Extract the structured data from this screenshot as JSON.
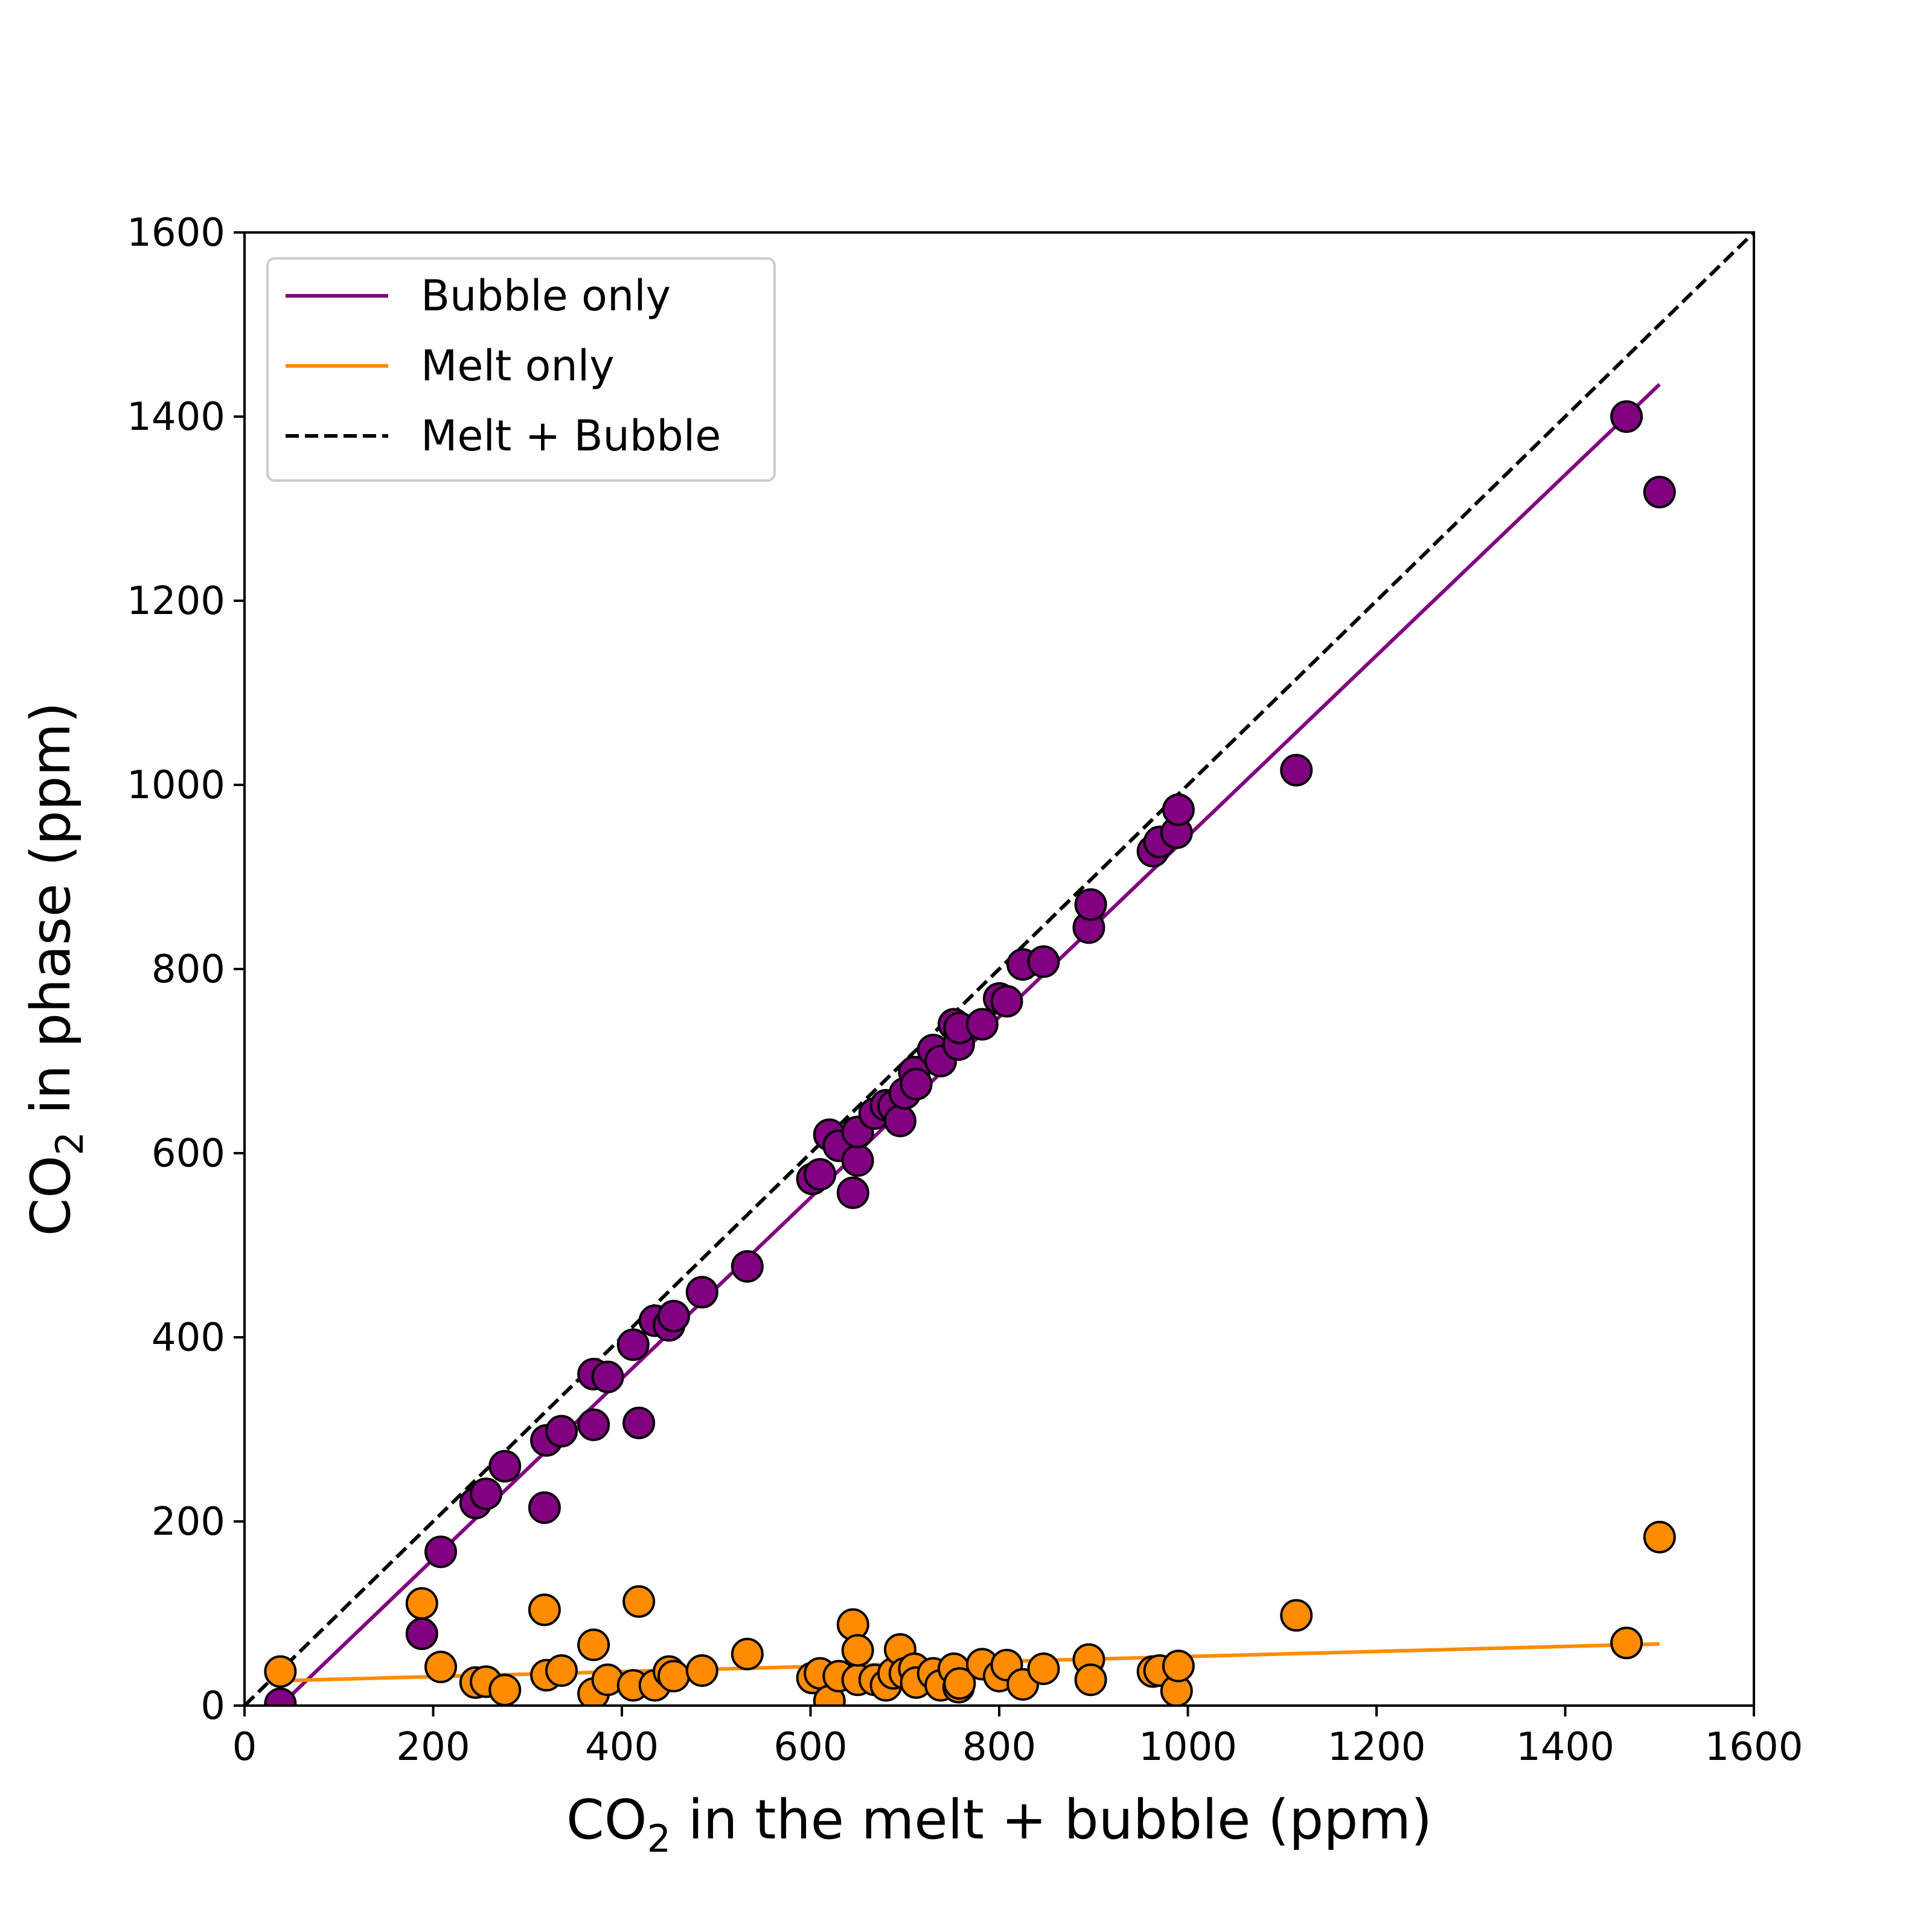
{
  "chart_data": {
    "type": "scatter",
    "xlabel_parts": {
      "pre": "CO",
      "sub": "2",
      "post": " in the melt + bubble (ppm)"
    },
    "ylabel_parts": {
      "pre": "CO",
      "sub": "2",
      "post": " in phase (ppm)"
    },
    "xlim": [
      0,
      1600
    ],
    "ylim": [
      0,
      1600
    ],
    "xticks": [
      0,
      200,
      400,
      600,
      800,
      1000,
      1200,
      1400,
      1600
    ],
    "yticks": [
      0,
      200,
      400,
      600,
      800,
      1000,
      1200,
      1400,
      1600
    ],
    "grid": false,
    "legend_placement": "top-left",
    "series": [
      {
        "name": "Bubble only",
        "color": "#800080",
        "marker": "circle",
        "fit_line": {
          "x": [
            38,
            1500
          ],
          "y": [
            0,
            1435
          ]
        },
        "points": [
          [
            38,
            2
          ],
          [
            188,
            78
          ],
          [
            208,
            167
          ],
          [
            245,
            220
          ],
          [
            256,
            230
          ],
          [
            276,
            260
          ],
          [
            318,
            215
          ],
          [
            320,
            288
          ],
          [
            336,
            298
          ],
          [
            370,
            360
          ],
          [
            370,
            305
          ],
          [
            385,
            357
          ],
          [
            412,
            392
          ],
          [
            418,
            307
          ],
          [
            435,
            418
          ],
          [
            450,
            413
          ],
          [
            455,
            423
          ],
          [
            485,
            449
          ],
          [
            533,
            477
          ],
          [
            602,
            572
          ],
          [
            610,
            577
          ],
          [
            620,
            620
          ],
          [
            630,
            608
          ],
          [
            645,
            557
          ],
          [
            650,
            592
          ],
          [
            650,
            623
          ],
          [
            668,
            643
          ],
          [
            680,
            652
          ],
          [
            688,
            651
          ],
          [
            695,
            635
          ],
          [
            700,
            665
          ],
          [
            710,
            688
          ],
          [
            712,
            675
          ],
          [
            730,
            712
          ],
          [
            738,
            700
          ],
          [
            752,
            740
          ],
          [
            757,
            718
          ],
          [
            758,
            736
          ],
          [
            782,
            740
          ],
          [
            800,
            768
          ],
          [
            808,
            765
          ],
          [
            825,
            805
          ],
          [
            847,
            808
          ],
          [
            895,
            845
          ],
          [
            897,
            870
          ],
          [
            963,
            928
          ],
          [
            970,
            938
          ],
          [
            988,
            948
          ],
          [
            990,
            973
          ],
          [
            1115,
            1016
          ],
          [
            1465,
            1400
          ],
          [
            1500,
            1318
          ]
        ]
      },
      {
        "name": "Melt only",
        "color": "#ff8c00",
        "marker": "circle",
        "fit_line": {
          "x": [
            38,
            1500
          ],
          "y": [
            27,
            67
          ]
        },
        "points": [
          [
            38,
            37
          ],
          [
            188,
            111
          ],
          [
            208,
            42
          ],
          [
            245,
            25
          ],
          [
            256,
            26
          ],
          [
            276,
            17
          ],
          [
            318,
            104
          ],
          [
            320,
            33
          ],
          [
            336,
            38
          ],
          [
            370,
            66
          ],
          [
            370,
            13
          ],
          [
            385,
            28
          ],
          [
            412,
            22
          ],
          [
            418,
            113
          ],
          [
            435,
            22
          ],
          [
            450,
            37
          ],
          [
            455,
            32
          ],
          [
            485,
            38
          ],
          [
            533,
            56
          ],
          [
            602,
            30
          ],
          [
            610,
            35
          ],
          [
            620,
            5
          ],
          [
            630,
            32
          ],
          [
            645,
            88
          ],
          [
            650,
            28
          ],
          [
            650,
            60
          ],
          [
            668,
            28
          ],
          [
            680,
            22
          ],
          [
            688,
            35
          ],
          [
            695,
            61
          ],
          [
            700,
            35
          ],
          [
            710,
            40
          ],
          [
            712,
            25
          ],
          [
            730,
            35
          ],
          [
            738,
            22
          ],
          [
            752,
            40
          ],
          [
            757,
            20
          ],
          [
            758,
            24
          ],
          [
            782,
            45
          ],
          [
            800,
            32
          ],
          [
            808,
            44
          ],
          [
            825,
            23
          ],
          [
            847,
            40
          ],
          [
            895,
            50
          ],
          [
            897,
            28
          ],
          [
            963,
            37
          ],
          [
            970,
            38
          ],
          [
            988,
            16
          ],
          [
            990,
            43
          ],
          [
            1115,
            98
          ],
          [
            1465,
            68
          ],
          [
            1500,
            183
          ]
        ]
      },
      {
        "name": "Melt + Bubble",
        "color": "#000000",
        "line_style": "dashed",
        "fit_line": {
          "x": [
            0,
            1600
          ],
          "y": [
            0,
            1600
          ]
        }
      }
    ]
  }
}
